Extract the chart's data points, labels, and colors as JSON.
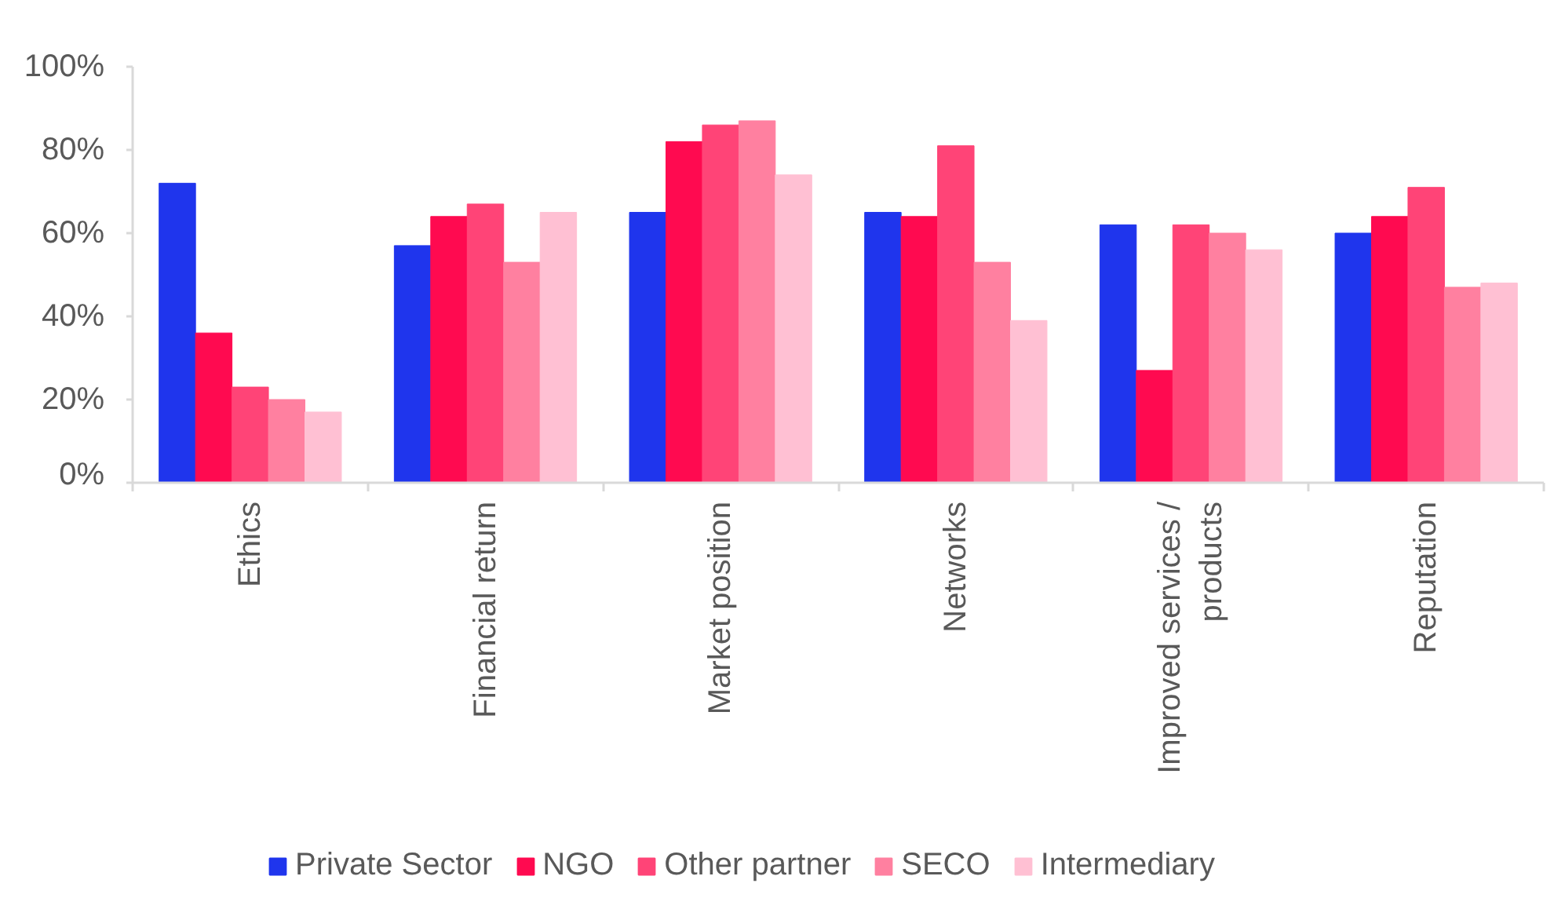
{
  "chart_data": {
    "type": "bar",
    "categories": [
      "Ethics",
      "Financial return",
      "Market position",
      "Networks",
      "Improved services / products",
      "Reputation"
    ],
    "series": [
      {
        "name": "Private Sector",
        "color": "#1f35ed",
        "values": [
          72,
          57,
          65,
          65,
          62,
          60
        ]
      },
      {
        "name": "NGO",
        "color": "#ff0a50",
        "values": [
          36,
          64,
          82,
          64,
          27,
          64
        ]
      },
      {
        "name": "Other partner",
        "color": "#ff4477",
        "values": [
          23,
          67,
          86,
          81,
          62,
          71
        ]
      },
      {
        "name": "SECO",
        "color": "#ff80a0",
        "values": [
          20,
          53,
          87,
          53,
          60,
          47
        ]
      },
      {
        "name": "Intermediary",
        "color": "#ffc0d3",
        "values": [
          17,
          65,
          74,
          39,
          56,
          48
        ]
      }
    ],
    "ylim": [
      0,
      100
    ],
    "yticks": [
      {
        "value": 0,
        "label": "0%"
      },
      {
        "value": 20,
        "label": "20%"
      },
      {
        "value": 40,
        "label": "40%"
      },
      {
        "value": 60,
        "label": "60%"
      },
      {
        "value": 80,
        "label": "80%"
      },
      {
        "value": 100,
        "label": "100%"
      }
    ],
    "grid": false,
    "legend": "bottom"
  }
}
